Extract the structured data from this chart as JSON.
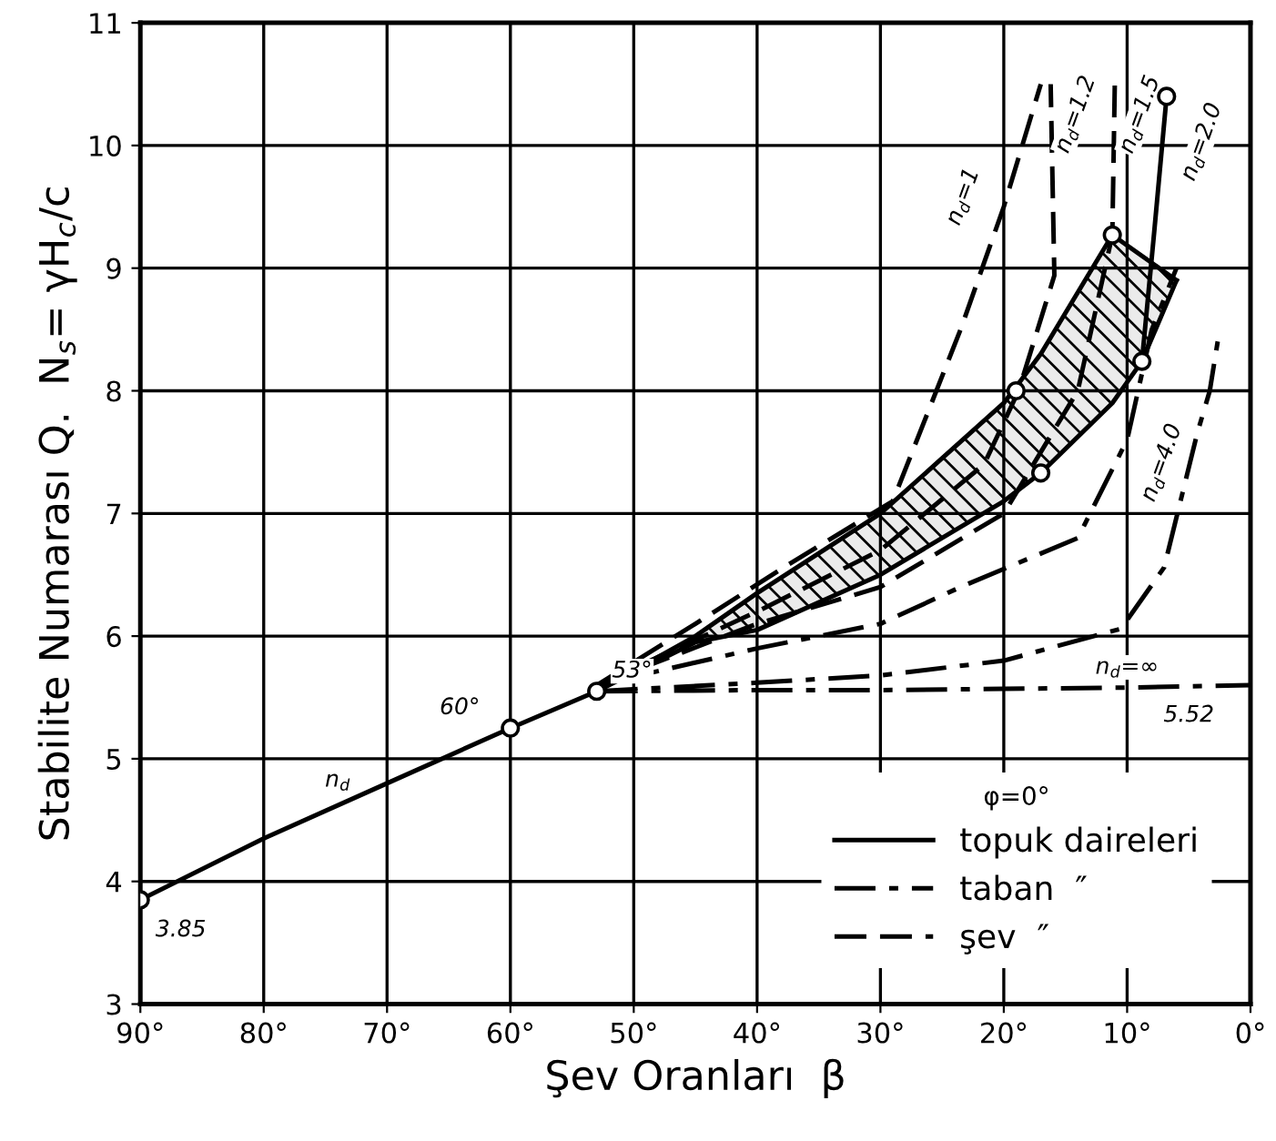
{
  "chart_data": {
    "type": "line",
    "xlabel": "Şev Oranları  β",
    "ylabel": "Stabilite Numarası Q.  N$_{s}$= γH$_{c}$/c",
    "xlim": [
      90,
      0
    ],
    "ylim": [
      3,
      11
    ],
    "xticks": [
      {
        "value": 90,
        "label": "90°"
      },
      {
        "value": 80,
        "label": "80°"
      },
      {
        "value": 70,
        "label": "70°"
      },
      {
        "value": 60,
        "label": "60°"
      },
      {
        "value": 50,
        "label": "50°"
      },
      {
        "value": 40,
        "label": "40°"
      },
      {
        "value": 30,
        "label": "30°"
      },
      {
        "value": 20,
        "label": "20°"
      },
      {
        "value": 10,
        "label": "10°"
      },
      {
        "value": 0,
        "label": "0°"
      }
    ],
    "yticks": [
      3,
      4,
      5,
      6,
      7,
      8,
      9,
      10,
      11
    ],
    "grid": true,
    "legend": "bottom right",
    "legend_title": "φ=0°",
    "series": [
      {
        "name": "topuk daireleri",
        "line_style": "solid",
        "color": "#000000",
        "x": [
          90,
          80,
          70,
          60,
          53,
          null,
          8.8,
          7.8,
          6.8,
          null,
          53,
          45,
          40,
          30,
          20,
          17,
          11.2,
          8.8,
          6
        ],
        "values": [
          3.85,
          4.35,
          4.8,
          5.25,
          5.55,
          null,
          8.24,
          9.3,
          10.4,
          null,
          5.55,
          5.95,
          6.05,
          6.5,
          7.1,
          7.33,
          7.9,
          8.24,
          8.9
        ]
      },
      {
        "line_style": "solid",
        "color": "#000000",
        "x": [
          53,
          45,
          40,
          30,
          20,
          17,
          11.2,
          8.8,
          6
        ],
        "values": [
          5.55,
          6.0,
          6.35,
          7.0,
          7.9,
          8.3,
          9.27,
          9.1,
          8.9
        ],
        "lower": [
          5.55,
          5.95,
          6.05,
          6.5,
          7.1,
          7.33,
          7.9,
          8.24,
          8.9
        ],
        "upper": [
          5.55,
          6.0,
          6.35,
          7.0,
          7.9,
          8.3,
          9.27,
          9.1,
          8.9
        ]
      },
      {
        "name": "taban  ″",
        "line_style": "dashdot",
        "color": "#000000",
        "x": [
          53,
          40,
          30,
          20,
          10,
          0,
          null,
          53,
          40,
          30,
          20,
          10.5,
          7,
          4.3,
          3.3,
          2.5,
          null,
          53,
          40,
          30,
          23.5,
          14,
          10,
          8,
          6
        ],
        "values": [
          5.55,
          5.56,
          5.56,
          5.57,
          5.58,
          5.6,
          null,
          5.55,
          5.62,
          5.68,
          5.8,
          6.06,
          6.56,
          7.66,
          8.0,
          8.5,
          null,
          5.6,
          5.9,
          6.1,
          6.4,
          6.8,
          7.6,
          8.5,
          9.0
        ]
      },
      {
        "name": "şev  ″",
        "line_style": "dashed",
        "color": "#000000",
        "x": [
          53,
          45,
          38,
          29,
          23.5,
          20,
          17,
          null,
          53,
          40,
          30,
          21.6,
          18.8,
          15.9,
          16.2,
          null,
          53,
          40,
          30,
          20,
          14,
          11.2,
          11
        ],
        "values": [
          5.6,
          6.1,
          6.55,
          7.1,
          8.5,
          9.5,
          10.5,
          null,
          5.6,
          6.2,
          6.7,
          7.4,
          8.0,
          8.94,
          10.5,
          null,
          5.6,
          6.1,
          6.4,
          7.0,
          8.0,
          9.27,
          10.5
        ]
      },
      {
        "type": "scatter",
        "marker": "circle",
        "color": "#000000",
        "x": [
          90,
          60,
          53,
          19,
          17,
          11.2,
          8.8,
          6.8
        ],
        "values": [
          3.85,
          5.25,
          5.55,
          8.0,
          7.33,
          9.27,
          8.24,
          10.4
        ]
      }
    ],
    "annotations": [
      {
        "text": "3.85",
        "x": 90,
        "y": 3.85
      },
      {
        "text": "60°",
        "x": 60,
        "y": 5.25
      },
      {
        "text": "53°",
        "x": 53,
        "y": 5.55
      },
      {
        "text": "n$_{d}$",
        "x": 74,
        "y": 4.7
      },
      {
        "text": "n$_{d}$=1",
        "x": 20,
        "y": 9.5
      },
      {
        "text": "n$_{d}$=1.2",
        "x": 16.2,
        "y": 10.5
      },
      {
        "text": "n$_{d}$=1.5",
        "x": 11,
        "y": 10.5
      },
      {
        "text": "n$_{d}$=2.0",
        "x": 6.8,
        "y": 10.4
      },
      {
        "text": "n$_{d}$=4.0",
        "x": 4.3,
        "y": 7.66
      },
      {
        "text": "n$_{d}$=∞",
        "x": 10,
        "y": 5.58
      },
      {
        "text": "5.52",
        "x": 5,
        "y": 5.58
      }
    ]
  }
}
